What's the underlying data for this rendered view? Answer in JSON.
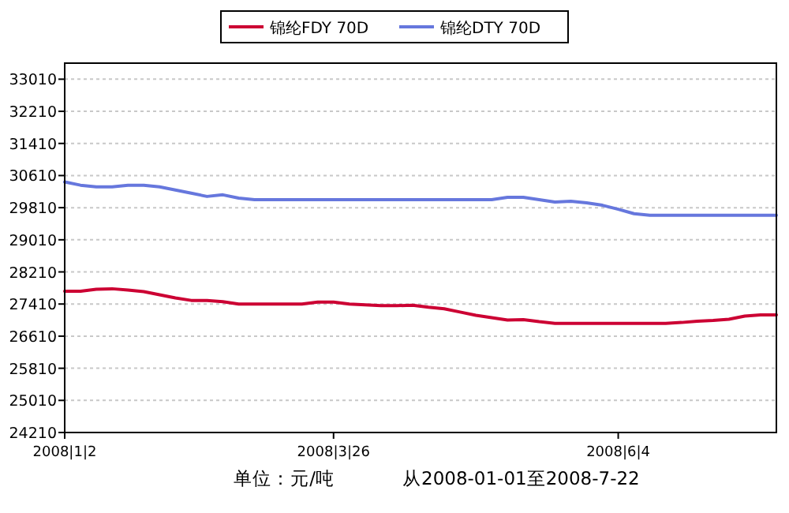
{
  "chart_data": {
    "type": "line",
    "categories": [
      "2008|1|2",
      null,
      null,
      null,
      null,
      null,
      null,
      null,
      null,
      null,
      null,
      null,
      null,
      null,
      null,
      null,
      null,
      "2008|3|26",
      null,
      null,
      null,
      null,
      null,
      null,
      null,
      null,
      null,
      null,
      null,
      null,
      null,
      null,
      null,
      null,
      null,
      "2008|6|4",
      null,
      null,
      null,
      null,
      null,
      null,
      null,
      null,
      null,
      null
    ],
    "series": [
      {
        "name": "锦纶FDY 70D",
        "color": "#cc0033",
        "values": [
          27730,
          27730,
          27780,
          27790,
          27760,
          27720,
          27640,
          27560,
          27500,
          27500,
          27470,
          27410,
          27410,
          27410,
          27410,
          27410,
          27460,
          27460,
          27410,
          27390,
          27370,
          27370,
          27380,
          27330,
          27290,
          27210,
          27130,
          27070,
          27010,
          27020,
          26970,
          26930,
          26930,
          26930,
          26930,
          26930,
          26930,
          26930,
          26930,
          26950,
          26980,
          27000,
          27030,
          27110,
          27140,
          27140
        ]
      },
      {
        "name": "锦纶DTY 70D",
        "color": "#6677dd",
        "values": [
          30450,
          30370,
          30330,
          30330,
          30370,
          30370,
          30330,
          30250,
          30170,
          30090,
          30130,
          30050,
          30010,
          30010,
          30010,
          30010,
          30010,
          30010,
          30010,
          30010,
          30010,
          30010,
          30010,
          30010,
          30010,
          30010,
          30010,
          30010,
          30070,
          30070,
          30010,
          29950,
          29970,
          29930,
          29870,
          29770,
          29660,
          29620,
          29620,
          29620,
          29620,
          29620,
          29620,
          29620,
          29620,
          29620
        ]
      }
    ],
    "ylim": [
      24210,
      33410
    ],
    "yticks": [
      24210,
      25010,
      25810,
      26610,
      27410,
      28210,
      29010,
      29810,
      30610,
      31410,
      32210,
      33010
    ],
    "grid": "y",
    "legend": "top",
    "marker": "none",
    "line_style": "solid",
    "annotations": [
      "单位：元/吨",
      "从2008-01-01至2008-7-22"
    ]
  }
}
